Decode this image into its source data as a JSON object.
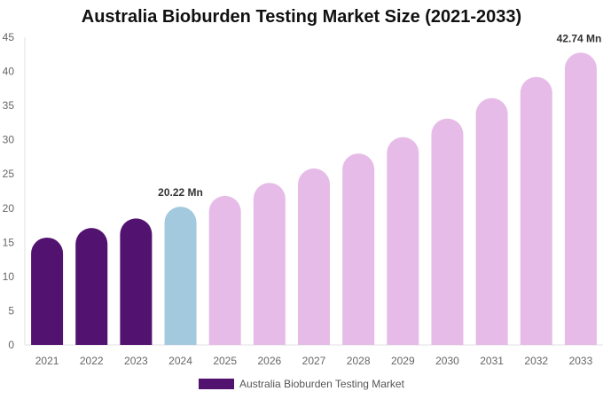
{
  "chart_data": {
    "type": "bar",
    "title": "Australia Bioburden Testing Market Size (2021-2033)",
    "categories": [
      "2021",
      "2022",
      "2023",
      "2024",
      "2025",
      "2026",
      "2027",
      "2028",
      "2029",
      "2030",
      "2031",
      "2032",
      "2033"
    ],
    "series": [
      {
        "name": "Australia Bioburden Testing Market",
        "values": [
          15.7,
          17.1,
          18.5,
          20.22,
          21.8,
          23.7,
          25.8,
          28.0,
          30.4,
          33.1,
          36.1,
          39.2,
          42.74
        ]
      }
    ],
    "data_labels": {
      "3": "20.22 Mn",
      "12": "42.74 Mn"
    },
    "ylim": [
      0,
      45
    ],
    "yticks": [
      0,
      5,
      10,
      15,
      20,
      25,
      30,
      35,
      40,
      45
    ],
    "grid": false,
    "legend": "bottom",
    "colors": {
      "historical": "#521270",
      "base": "#a3c9de",
      "forecast": "#e6bbe8"
    },
    "xlabel": "",
    "ylabel": ""
  }
}
